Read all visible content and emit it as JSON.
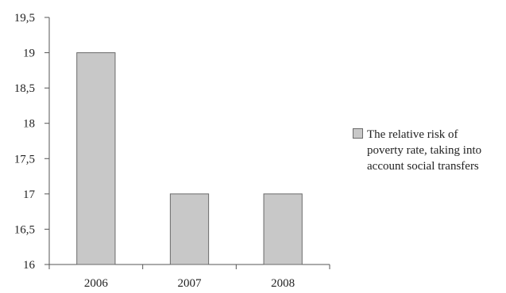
{
  "chart_data": {
    "type": "bar",
    "categories": [
      "2006",
      "2007",
      "2008"
    ],
    "series": [
      {
        "name": "The relative risk of poverty rate, taking into account social transfers",
        "values": [
          19,
          17,
          17
        ]
      }
    ],
    "yticks": [
      "16",
      "16,5",
      "17",
      "17,5",
      "18",
      "18,5",
      "19",
      "19,5"
    ],
    "ylim": [
      16,
      19.5
    ],
    "title": "",
    "xlabel": "",
    "ylabel": "",
    "grid": false,
    "legend_position": "right",
    "colors": {
      "bar_fill": "#c8c8c8",
      "bar_stroke": "#6a6a6a",
      "axis": "#555555"
    }
  },
  "legend": {
    "label_lines": [
      "The relative risk of",
      "poverty rate, taking into",
      "account social transfers"
    ]
  }
}
